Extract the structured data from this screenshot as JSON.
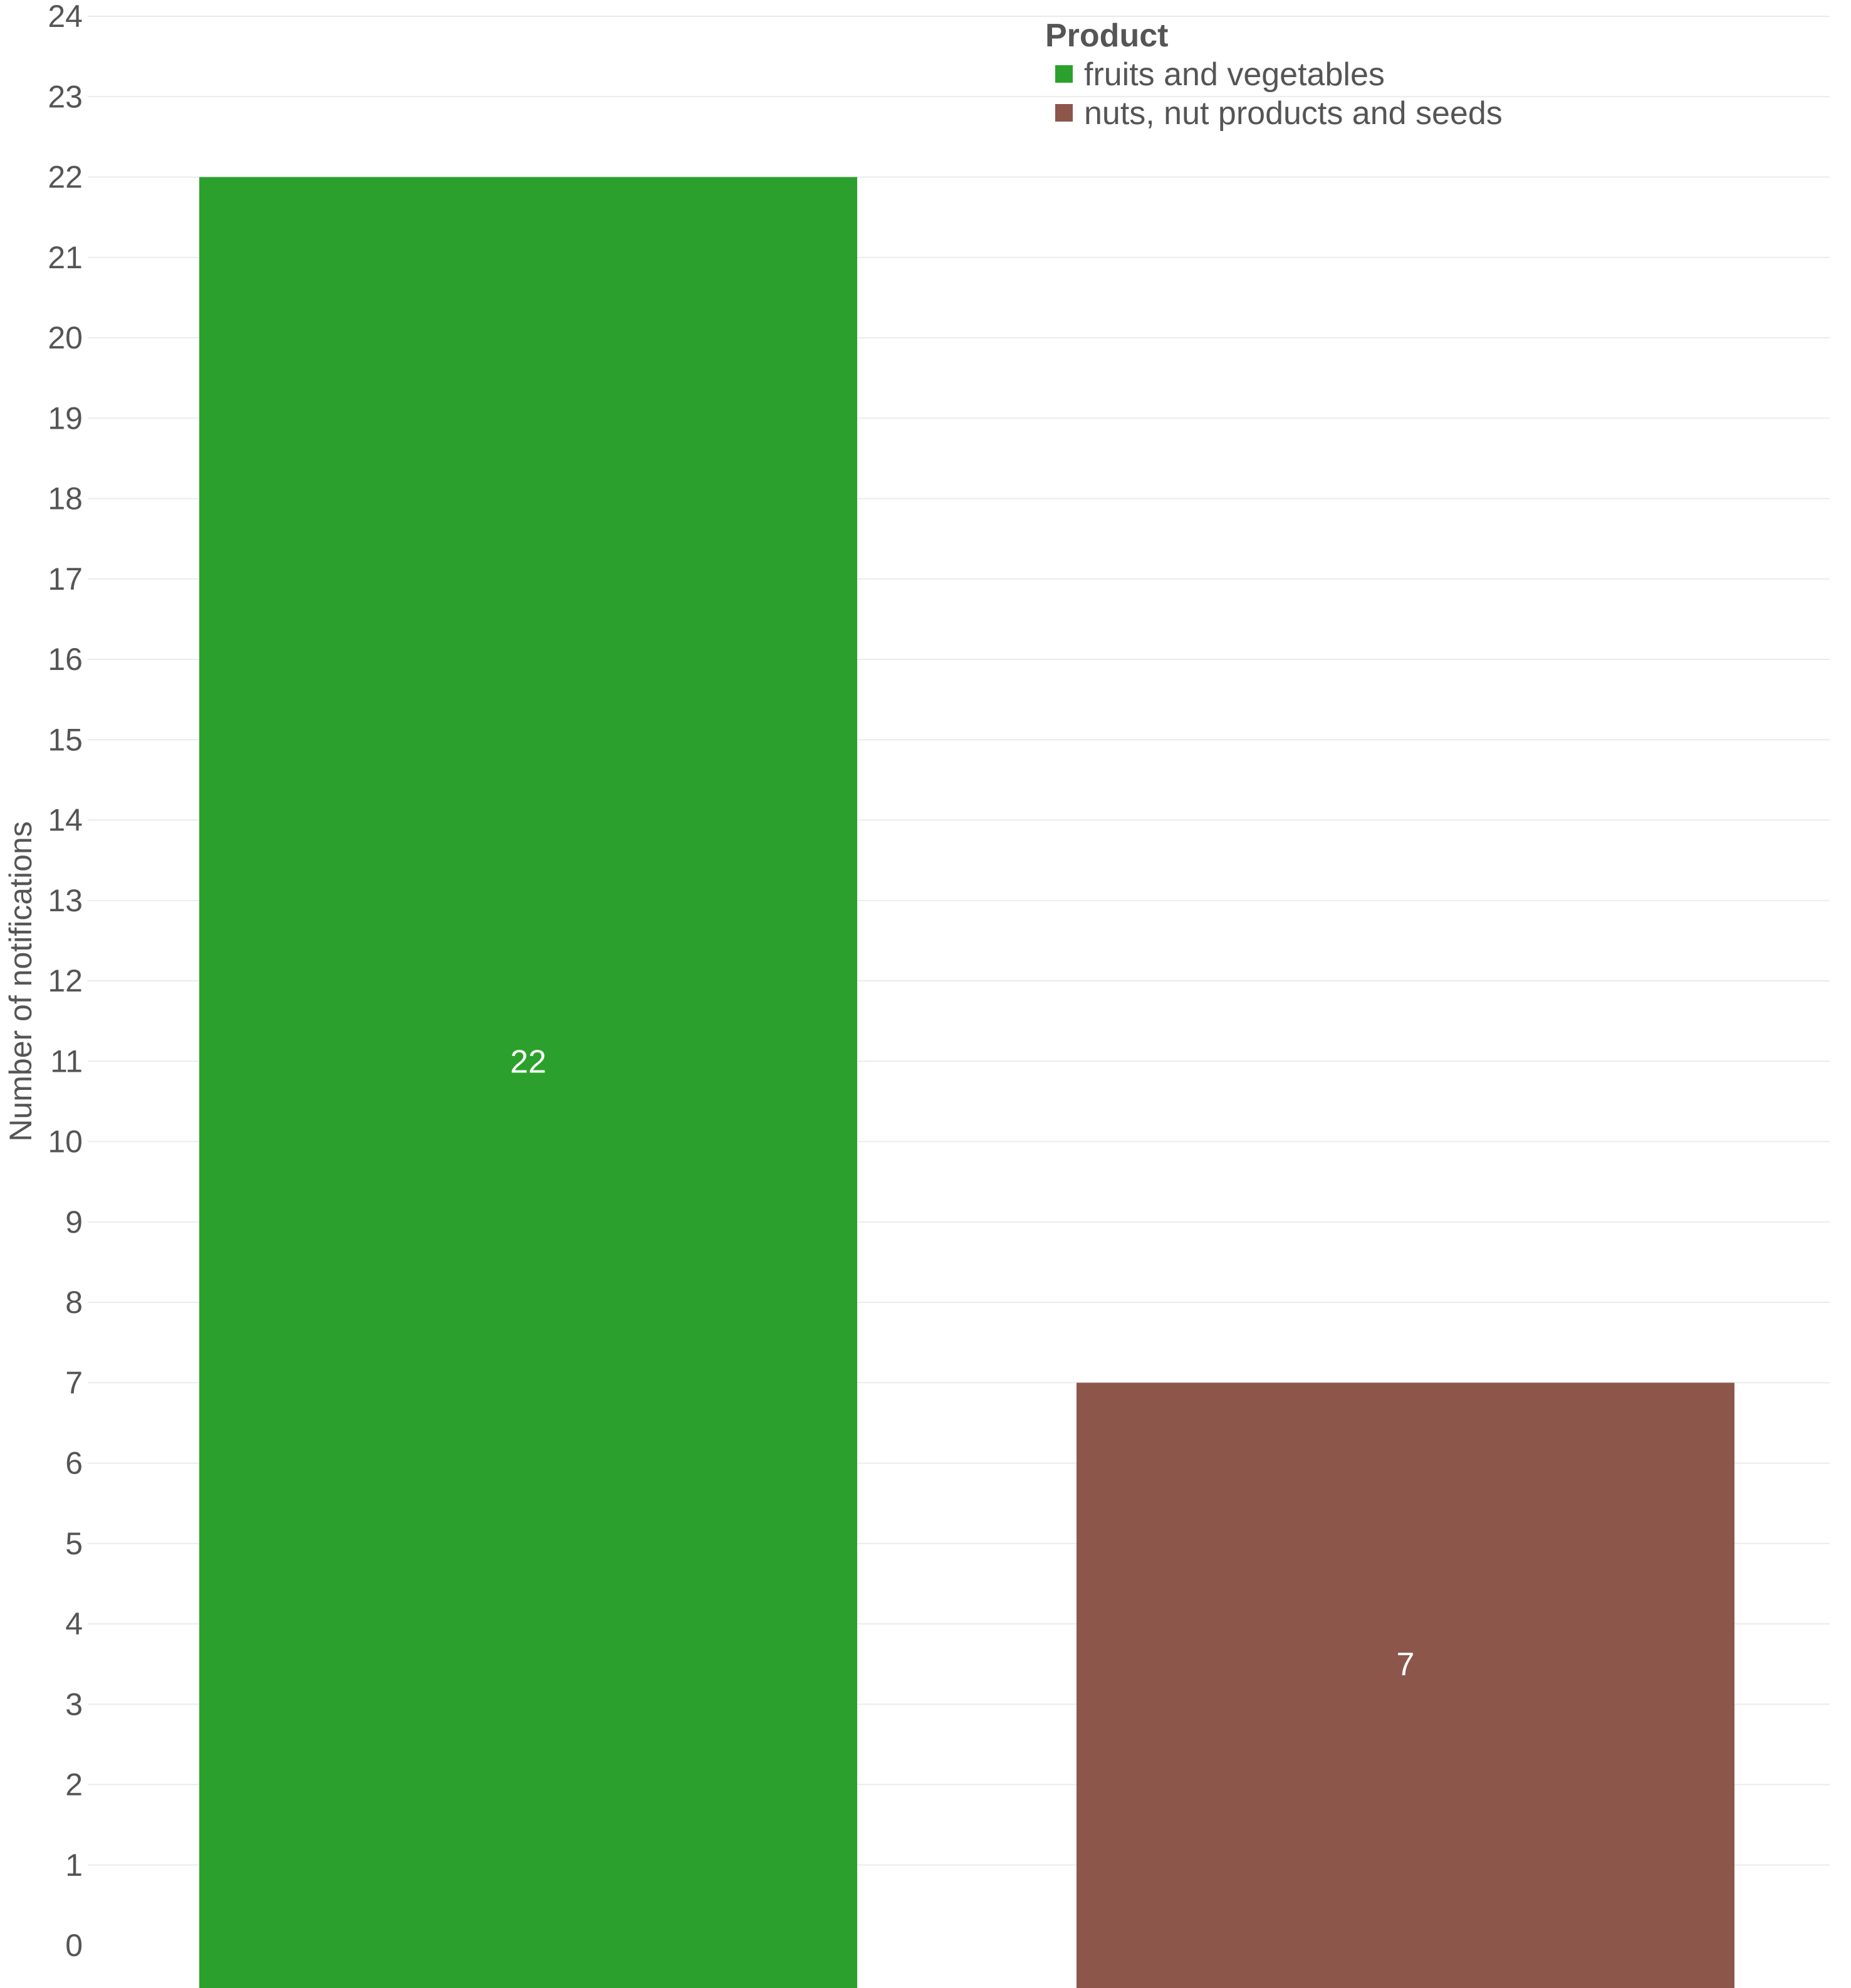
{
  "chart_data": {
    "type": "bar",
    "ylabel": "Number of notifications",
    "xlabel": "",
    "ylim": [
      0,
      24
    ],
    "yticks": [
      0,
      1,
      2,
      3,
      4,
      5,
      6,
      7,
      8,
      9,
      10,
      11,
      12,
      13,
      14,
      15,
      16,
      17,
      18,
      19,
      20,
      21,
      22,
      23,
      24
    ],
    "grid": true,
    "legend": {
      "title": "Product",
      "placement": "top-right",
      "items": [
        {
          "label": "fruits and vegetables",
          "color": "#2ca02c"
        },
        {
          "label": "nuts, nut products and seeds",
          "color": "#8c564b"
        }
      ]
    },
    "bars": [
      {
        "series": "fruits and vegetables",
        "value": 22,
        "label": "22",
        "color": "#2ca02c"
      },
      {
        "series": "nuts, nut products and seeds",
        "value": 7,
        "label": "7",
        "color": "#8c564b"
      }
    ]
  }
}
